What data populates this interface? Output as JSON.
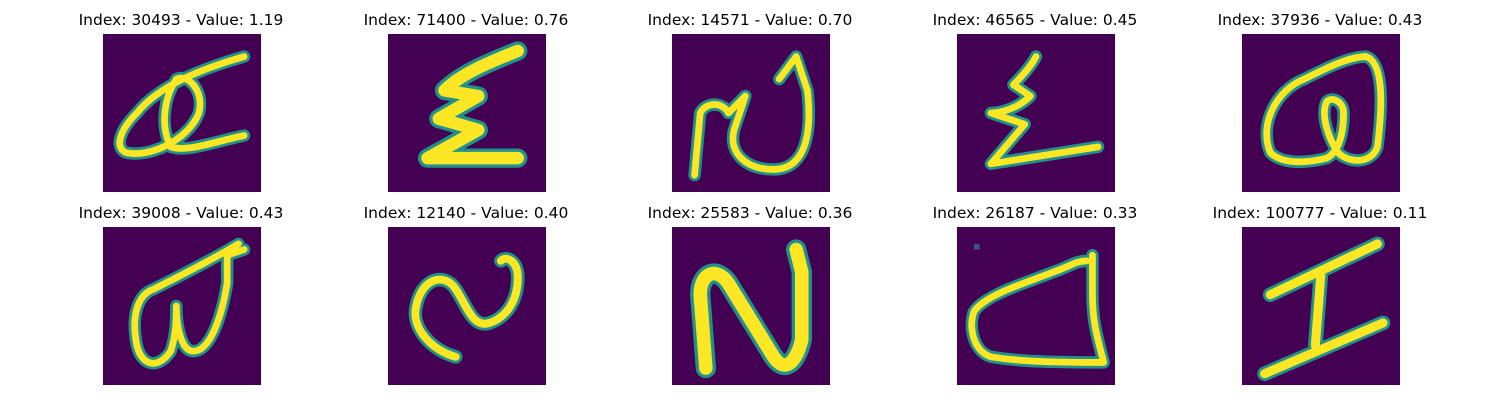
{
  "colors": {
    "background": "#440154",
    "mid": "#21918c",
    "stroke": "#fde725"
  },
  "panels": [
    {
      "title": "Index: 30493 - Value: 1.19"
    },
    {
      "title": "Index: 71400 - Value: 0.76"
    },
    {
      "title": "Index: 14571 - Value: 0.70"
    },
    {
      "title": "Index: 46565 - Value: 0.45"
    },
    {
      "title": "Index: 37936 - Value: 0.43"
    },
    {
      "title": "Index: 39008 - Value: 0.43"
    },
    {
      "title": "Index: 12140 - Value: 0.40"
    },
    {
      "title": "Index: 25583 - Value: 0.36"
    },
    {
      "title": "Index: 26187 - Value: 0.33"
    },
    {
      "title": "Index: 100777 - Value: 0.11"
    }
  ]
}
